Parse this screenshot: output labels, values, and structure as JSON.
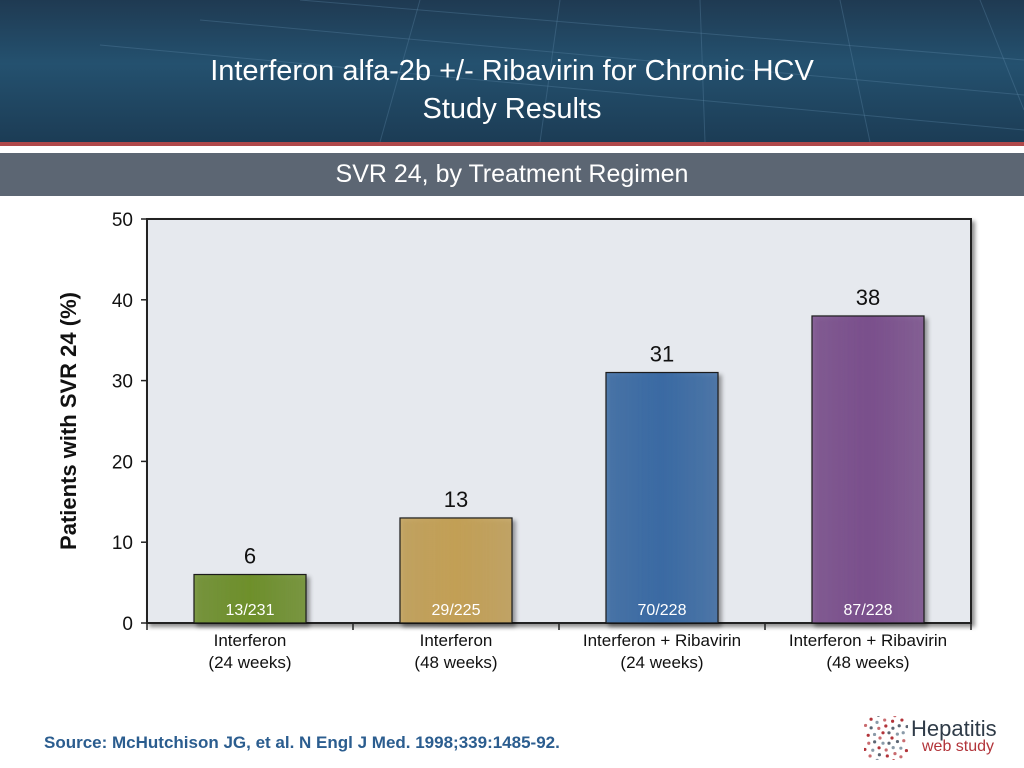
{
  "header": {
    "title_line1": "Interferon alfa-2b +/- Ribavirin for Chronic HCV",
    "title_line2": "Study Results"
  },
  "subtitle": "SVR 24, by Treatment Regimen",
  "chart_data": {
    "type": "bar",
    "categories": [
      [
        "Interferon",
        "(24 weeks)"
      ],
      [
        "Interferon",
        "(48 weeks)"
      ],
      [
        "Interferon + Ribavirin",
        "(24 weeks)"
      ],
      [
        "Interferon + Ribavirin",
        "(48 weeks)"
      ]
    ],
    "values": [
      6,
      13,
      31,
      38
    ],
    "value_labels": [
      "6",
      "13",
      "31",
      "38"
    ],
    "inner_labels": [
      "13/231",
      "29/225",
      "70/228",
      "87/228"
    ],
    "colors": [
      "#6e8f2c",
      "#c29f55",
      "#3a6aa3",
      "#7a4f8c"
    ],
    "ylabel": "Patients with SVR 24 (%)",
    "ylim": [
      0,
      50
    ],
    "yticks": [
      0,
      10,
      20,
      30,
      40,
      50
    ],
    "plot_background": "#e6e9ee"
  },
  "source": "Source: McHutchison JG, et al. N Engl J Med. 1998;339:1485-92.",
  "logo": {
    "title": "Hepatitis",
    "subtitle": "web study"
  }
}
